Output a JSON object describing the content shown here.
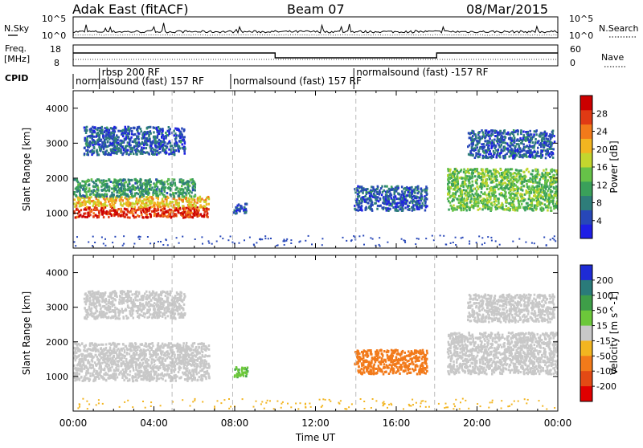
{
  "header": {
    "station": "Adak East (fitACF)",
    "beam": "Beam 07",
    "date": "08/Mar/2015"
  },
  "noise_panel": {
    "left_label": "N.Sky",
    "right_label": "N.Search",
    "yticks": [
      "10^5",
      "10^0"
    ]
  },
  "freq_panel": {
    "left_label_line1": "Freq.",
    "left_label_line2": "[MHz]",
    "right_label": "Nave",
    "left_ticks": [
      "18",
      "8"
    ],
    "right_ticks": [
      "60",
      "0"
    ]
  },
  "cpid_panel": {
    "label": "CPID",
    "segments": [
      {
        "text": "rbsp 200 RF",
        "start_hour": 1.3,
        "row": 0
      },
      {
        "text": "normalsound (fast) 157 RF",
        "start_hour": 0.0,
        "row": 1
      },
      {
        "text": "normalsound (fast) 157 RF",
        "start_hour": 7.8,
        "row": 1
      },
      {
        "text": "normalsound (fast) -157 RF",
        "start_hour": 13.9,
        "row": 0
      }
    ]
  },
  "chart_data": [
    {
      "type": "heatmap",
      "quantity": "Power",
      "ylabel": "Slant Range [km]",
      "xlabel": "",
      "ylim": [
        0,
        4500
      ],
      "yticks": [
        1000,
        2000,
        3000,
        4000
      ],
      "xlim": [
        0,
        24
      ],
      "colorbar": {
        "label": "Power [dB]",
        "min": 0,
        "max": 32,
        "ticks": [
          4,
          8,
          12,
          16,
          20,
          24,
          28
        ],
        "colors": [
          "#1e1ee6",
          "#2747b8",
          "#2e7d7a",
          "#3aa05a",
          "#66c248",
          "#c3d62e",
          "#f2b520",
          "#f27a1a",
          "#e03a14",
          "#cc0000"
        ]
      },
      "regions": [
        {
          "x0": 0.0,
          "x1": 6.7,
          "y0": 900,
          "y1": 1200,
          "value": 28
        },
        {
          "x0": 0.0,
          "x1": 6.7,
          "y0": 1200,
          "y1": 1500,
          "value": 20
        },
        {
          "x0": 0.0,
          "x1": 6.0,
          "y0": 1500,
          "y1": 2000,
          "value": 10
        },
        {
          "x0": 0.5,
          "x1": 5.5,
          "y0": 2700,
          "y1": 3500,
          "value": 6
        },
        {
          "x0": 7.9,
          "x1": 8.6,
          "y0": 1000,
          "y1": 1300,
          "value": 5
        },
        {
          "x0": 13.9,
          "x1": 17.5,
          "y0": 1100,
          "y1": 1800,
          "value": 6
        },
        {
          "x0": 18.5,
          "x1": 24.0,
          "y0": 1100,
          "y1": 2300,
          "value": 14
        },
        {
          "x0": 19.5,
          "x1": 23.8,
          "y0": 2600,
          "y1": 3400,
          "value": 6
        }
      ]
    },
    {
      "type": "heatmap",
      "quantity": "Velocity",
      "ylabel": "Slant Range [km]",
      "xlabel": "Time UT",
      "ylim": [
        0,
        4500
      ],
      "yticks": [
        1000,
        2000,
        3000,
        4000
      ],
      "xlim": [
        0,
        24
      ],
      "xticks": [
        "00:00",
        "04:00",
        "08:00",
        "12:00",
        "16:00",
        "20:00",
        "00:00"
      ],
      "colorbar": {
        "label": "Velocity [m s^-1]",
        "ticks": [
          200,
          100,
          50,
          15,
          -15,
          -50,
          -100,
          -200
        ],
        "colors": [
          "#1e2bd6",
          "#2a7b7a",
          "#3e9e48",
          "#6cc83a",
          "#c8c8c8",
          "#f2b520",
          "#f27a1a",
          "#e34a14",
          "#e00000"
        ]
      },
      "regions": [
        {
          "x0": 0.0,
          "x1": 6.7,
          "y0": 900,
          "y1": 2000,
          "value": 0
        },
        {
          "x0": 0.5,
          "x1": 5.5,
          "y0": 2700,
          "y1": 3500,
          "value": 0
        },
        {
          "x0": 7.9,
          "x1": 8.6,
          "y0": 1000,
          "y1": 1300,
          "value": 40
        },
        {
          "x0": 13.9,
          "x1": 17.5,
          "y0": 1100,
          "y1": 1800,
          "value": -80
        },
        {
          "x0": 18.5,
          "x1": 24.0,
          "y0": 1100,
          "y1": 2300,
          "value": 0
        },
        {
          "x0": 19.5,
          "x1": 23.8,
          "y0": 2600,
          "y1": 3400,
          "value": 0
        }
      ]
    }
  ]
}
